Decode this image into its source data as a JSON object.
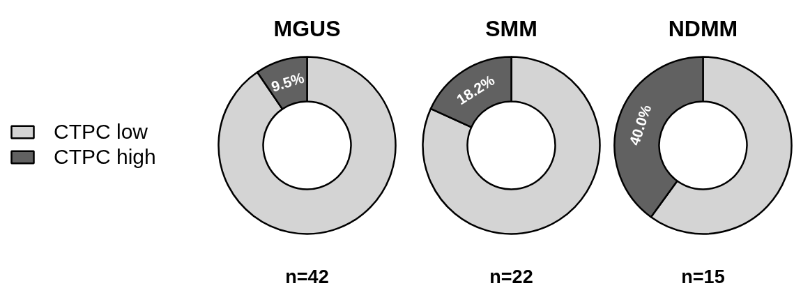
{
  "chart_data": [
    {
      "type": "donut",
      "title": "MGUS",
      "categories": [
        "CTPC low",
        "CTPC high"
      ],
      "values": [
        90.5,
        9.5
      ],
      "colors": [
        "#d4d4d4",
        "#616161"
      ],
      "value_labels": [
        null,
        "9.5%"
      ],
      "annotations": [
        "n=42"
      ],
      "legend": "left"
    },
    {
      "type": "donut",
      "title": "SMM",
      "categories": [
        null,
        null
      ],
      "values": [
        81.8,
        18.2
      ],
      "colors": [
        "#d4d4d4",
        "#616161"
      ],
      "value_labels": [
        null,
        "18.2%"
      ],
      "annotations": [
        "n=22"
      ]
    },
    {
      "type": "donut",
      "title": "NDMM",
      "categories": [
        null,
        null
      ],
      "values": [
        60.0,
        40.0
      ],
      "colors": [
        "#d4d4d4",
        "#616161"
      ],
      "value_labels": [
        null,
        "40.0%"
      ],
      "annotations": [
        "n=15"
      ]
    }
  ]
}
